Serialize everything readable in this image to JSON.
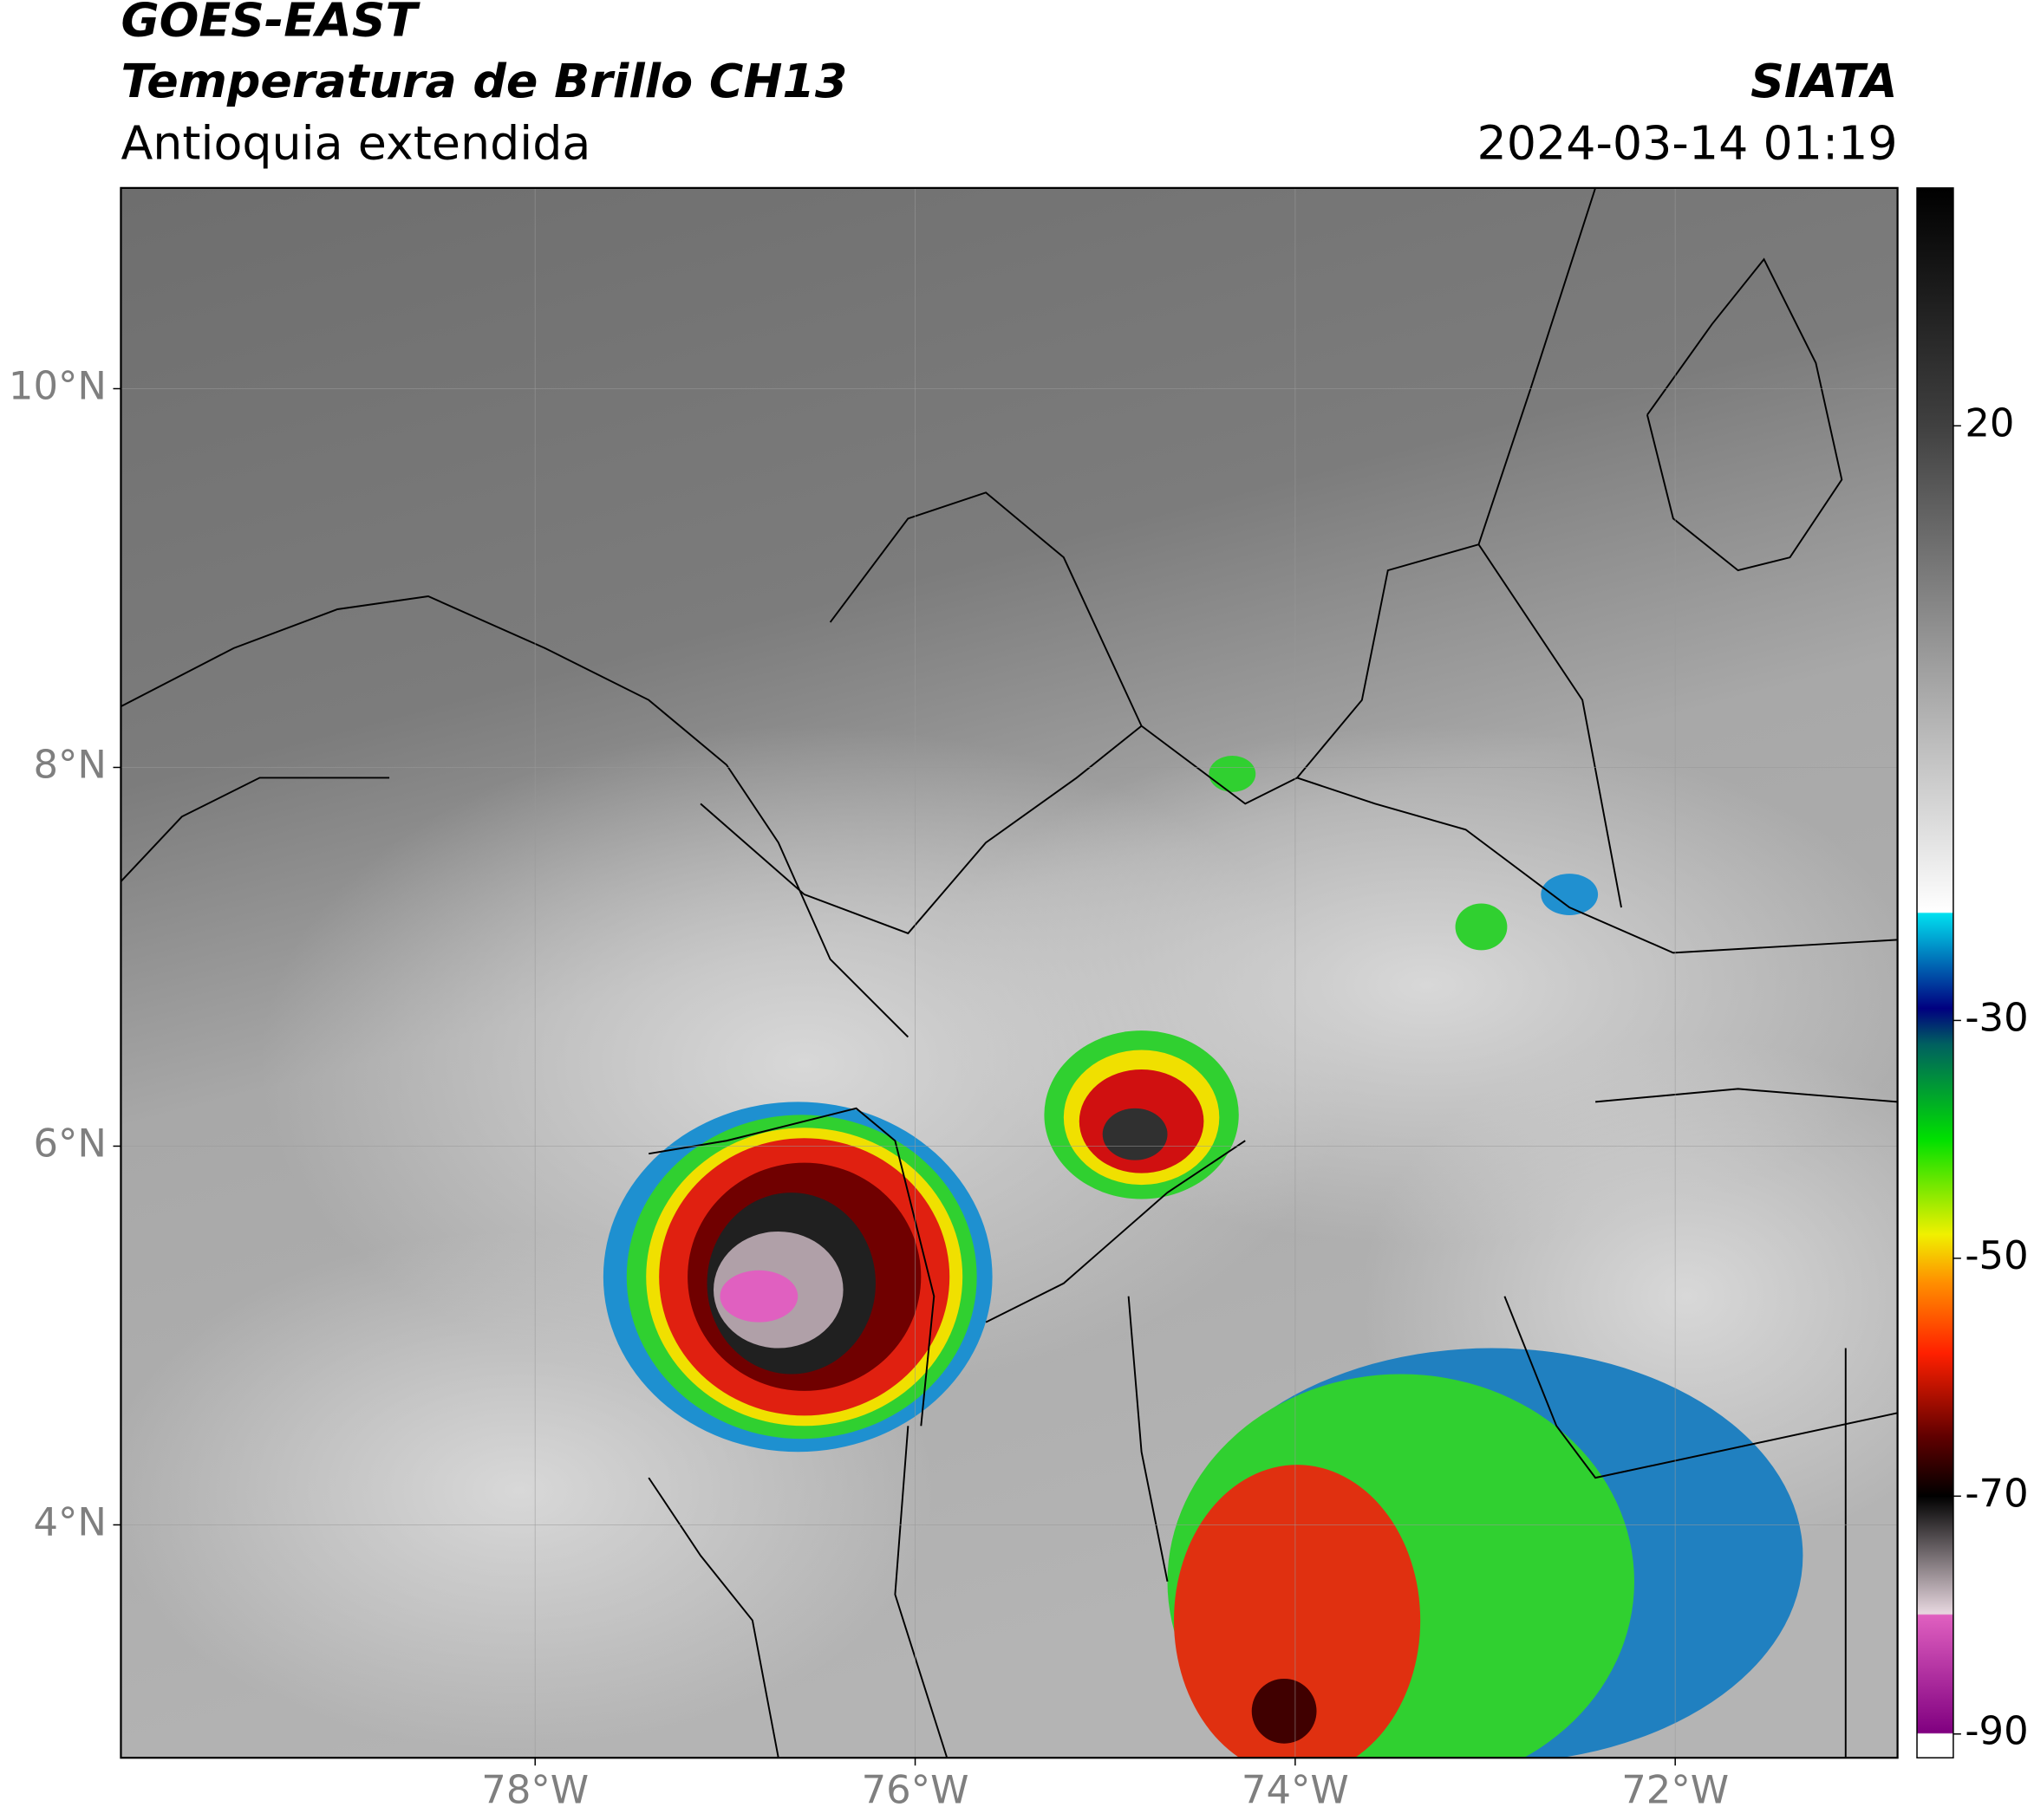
{
  "header": {
    "satellite": "GOES-EAST",
    "product": "Temperatura de Brillo CH13",
    "region": "Antioquia extendida",
    "agency": "SIATA",
    "datetime": "2024-03-14 01:19"
  },
  "map": {
    "xlim": [
      -80.18,
      -70.83
    ],
    "ylim": [
      2.77,
      11.06
    ],
    "xticks": [
      {
        "value": -78,
        "label": "78°W"
      },
      {
        "value": -76,
        "label": "76°W"
      },
      {
        "value": -74,
        "label": "74°W"
      },
      {
        "value": -72,
        "label": "72°W"
      }
    ],
    "yticks": [
      {
        "value": 4,
        "label": "4°N"
      },
      {
        "value": 6,
        "label": "6°N"
      },
      {
        "value": 8,
        "label": "8°N"
      },
      {
        "value": 10,
        "label": "10°N"
      }
    ],
    "grid": true
  },
  "colorbar": {
    "clim": [
      -92,
      40
    ],
    "ticks": [
      -90,
      -70,
      -50,
      -30,
      20
    ],
    "colormap": [
      {
        "value": -92,
        "color": "#ffffff"
      },
      {
        "value": -90,
        "color": "#ffffff"
      },
      {
        "value": -89.9,
        "color": "#800080"
      },
      {
        "value": -80,
        "color": "#e060c0"
      },
      {
        "value": -79.9,
        "color": "#e8d8e0"
      },
      {
        "value": -70,
        "color": "#000000"
      },
      {
        "value": -65,
        "color": "#600000"
      },
      {
        "value": -58,
        "color": "#ff2000"
      },
      {
        "value": -52,
        "color": "#ff9000"
      },
      {
        "value": -48,
        "color": "#f0f000"
      },
      {
        "value": -40,
        "color": "#00e000"
      },
      {
        "value": -32,
        "color": "#006060"
      },
      {
        "value": -29,
        "color": "#000080"
      },
      {
        "value": -21,
        "color": "#00e0f0"
      },
      {
        "value": -20.9,
        "color": "#ffffff"
      },
      {
        "value": 20,
        "color": "#404040"
      },
      {
        "value": 40,
        "color": "#000000"
      }
    ]
  }
}
